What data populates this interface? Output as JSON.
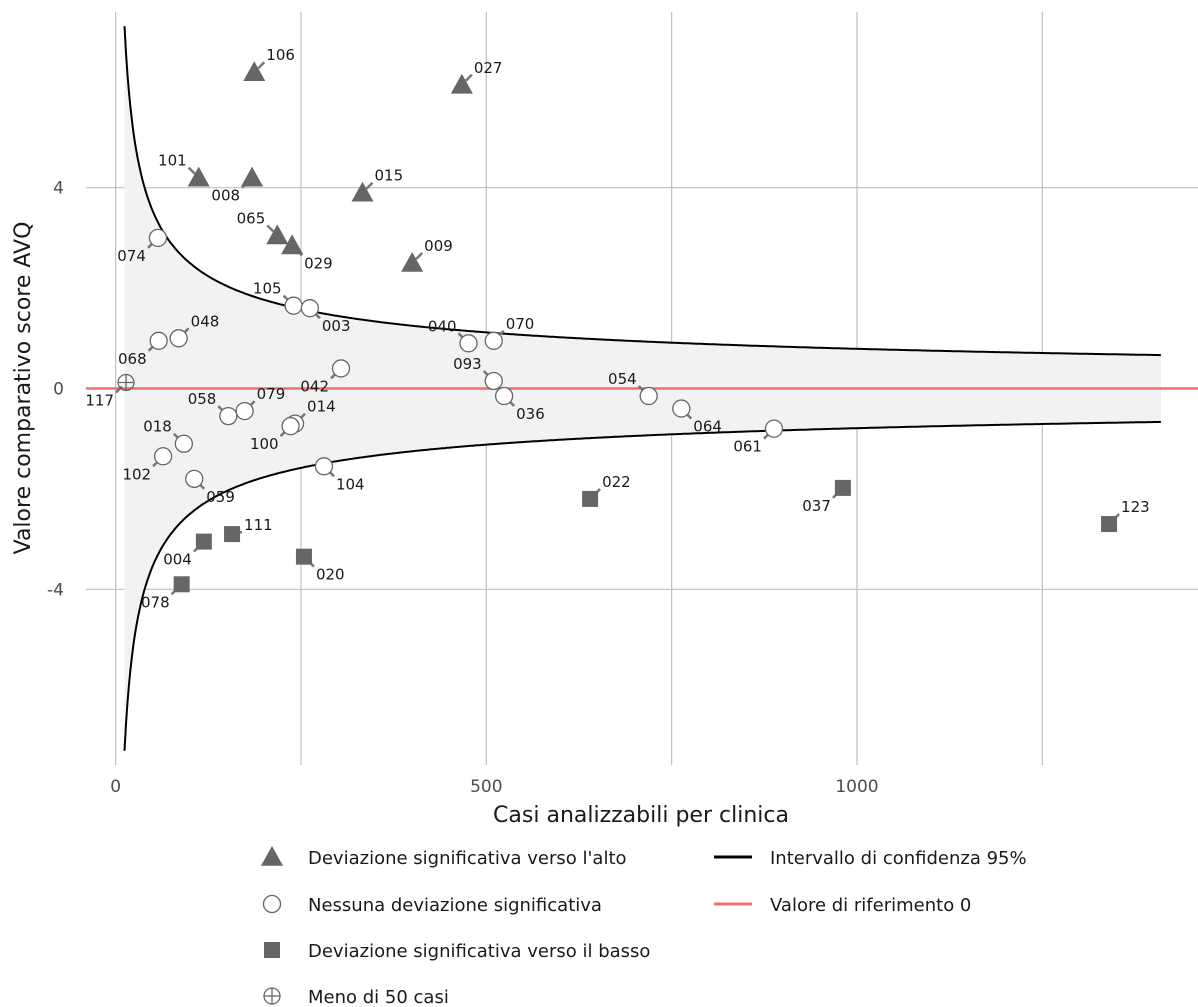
{
  "chart_data": {
    "type": "scatter",
    "title": "",
    "xlabel": "Casi analizzabili per clinica",
    "ylabel": "Valore comparativo score AVQ",
    "xlim": [
      -40,
      1460
    ],
    "ylim": [
      -7.5,
      7.5
    ],
    "xticks": [
      0,
      500,
      1000
    ],
    "yticks": [
      -4,
      0,
      4
    ],
    "grid": true,
    "colors": {
      "marker": "#666666",
      "ci_line": "#000000",
      "ci_fill": "#f2f2f2",
      "reference": "#ef6f6f",
      "grid": "#bfbfbf"
    },
    "confidence_band": {
      "label": "Intervallo di confidenza 95%",
      "coef": 25.0,
      "x_start": 12,
      "x_end": 1410
    },
    "reference_line": {
      "label": "Valore di riferimento 0",
      "y": 0
    },
    "categories": [
      {
        "key": "up",
        "label": "Deviazione significativa verso l'alto",
        "marker": "triangle"
      },
      {
        "key": "none",
        "label": "Nessuna deviazione significativa",
        "marker": "circle"
      },
      {
        "key": "down",
        "label": "Deviazione significativa verso il basso",
        "marker": "square"
      },
      {
        "key": "few",
        "label": "Meno di 50 casi",
        "marker": "circle-plus"
      }
    ],
    "points": [
      {
        "id": "106",
        "x": 187,
        "y": 6.3,
        "cat": "up",
        "ldx": 10,
        "ldy": -10,
        "anchor": "start"
      },
      {
        "id": "027",
        "x": 467,
        "y": 6.05,
        "cat": "up",
        "ldx": 10,
        "ldy": -10,
        "anchor": "start"
      },
      {
        "id": "101",
        "x": 112,
        "y": 4.2,
        "cat": "up",
        "ldx": -10,
        "ldy": -10,
        "anchor": "end"
      },
      {
        "id": "008",
        "x": 184,
        "y": 4.2,
        "cat": "up",
        "ldx": -10,
        "ldy": 10,
        "anchor": "end"
      },
      {
        "id": "015",
        "x": 333,
        "y": 3.9,
        "cat": "up",
        "ldx": 10,
        "ldy": -10,
        "anchor": "start"
      },
      {
        "id": "065",
        "x": 218,
        "y": 3.05,
        "cat": "up",
        "ldx": -10,
        "ldy": -10,
        "anchor": "end"
      },
      {
        "id": "029",
        "x": 238,
        "y": 2.85,
        "cat": "up",
        "ldx": 10,
        "ldy": 10,
        "anchor": "start"
      },
      {
        "id": "009",
        "x": 400,
        "y": 2.5,
        "cat": "up",
        "ldx": 10,
        "ldy": -10,
        "anchor": "start"
      },
      {
        "id": "074",
        "x": 57,
        "y": 3.0,
        "cat": "none",
        "ldx": -10,
        "ldy": 10,
        "anchor": "end"
      },
      {
        "id": "105",
        "x": 240,
        "y": 1.65,
        "cat": "none",
        "ldx": -10,
        "ldy": -10,
        "anchor": "end"
      },
      {
        "id": "003",
        "x": 262,
        "y": 1.6,
        "cat": "none",
        "ldx": 10,
        "ldy": 10,
        "anchor": "start"
      },
      {
        "id": "048",
        "x": 85,
        "y": 1.0,
        "cat": "none",
        "ldx": 10,
        "ldy": -10,
        "anchor": "start"
      },
      {
        "id": "068",
        "x": 58,
        "y": 0.95,
        "cat": "none",
        "ldx": -10,
        "ldy": 10,
        "anchor": "end"
      },
      {
        "id": "042",
        "x": 304,
        "y": 0.4,
        "cat": "none",
        "ldx": -10,
        "ldy": 10,
        "anchor": "end"
      },
      {
        "id": "040",
        "x": 476,
        "y": 0.9,
        "cat": "none",
        "ldx": -10,
        "ldy": -10,
        "anchor": "end"
      },
      {
        "id": "070",
        "x": 510,
        "y": 0.95,
        "cat": "none",
        "ldx": 10,
        "ldy": -10,
        "anchor": "start"
      },
      {
        "id": "093",
        "x": 510,
        "y": 0.15,
        "cat": "none",
        "ldx": -10,
        "ldy": -10,
        "anchor": "end"
      },
      {
        "id": "036",
        "x": 524,
        "y": -0.15,
        "cat": "none",
        "ldx": 10,
        "ldy": 10,
        "anchor": "start"
      },
      {
        "id": "054",
        "x": 719,
        "y": -0.15,
        "cat": "none",
        "ldx": -10,
        "ldy": -10,
        "anchor": "end"
      },
      {
        "id": "064",
        "x": 763,
        "y": -0.4,
        "cat": "none",
        "ldx": 10,
        "ldy": 10,
        "anchor": "start"
      },
      {
        "id": "061",
        "x": 888,
        "y": -0.8,
        "cat": "none",
        "ldx": -10,
        "ldy": 10,
        "anchor": "end"
      },
      {
        "id": "058",
        "x": 152,
        "y": -0.55,
        "cat": "none",
        "ldx": -10,
        "ldy": -10,
        "anchor": "end"
      },
      {
        "id": "079",
        "x": 174,
        "y": -0.45,
        "cat": "none",
        "ldx": 10,
        "ldy": -10,
        "anchor": "start"
      },
      {
        "id": "014",
        "x": 242,
        "y": -0.7,
        "cat": "none",
        "ldx": 10,
        "ldy": -10,
        "anchor": "start"
      },
      {
        "id": "100",
        "x": 236,
        "y": -0.75,
        "cat": "none",
        "ldx": -10,
        "ldy": 10,
        "anchor": "end"
      },
      {
        "id": "018",
        "x": 92,
        "y": -1.1,
        "cat": "none",
        "ldx": -10,
        "ldy": -10,
        "anchor": "end"
      },
      {
        "id": "102",
        "x": 64,
        "y": -1.35,
        "cat": "none",
        "ldx": -10,
        "ldy": 10,
        "anchor": "end"
      },
      {
        "id": "059",
        "x": 106,
        "y": -1.8,
        "cat": "none",
        "ldx": 10,
        "ldy": 10,
        "anchor": "start"
      },
      {
        "id": "104",
        "x": 281,
        "y": -1.55,
        "cat": "none",
        "ldx": 10,
        "ldy": 10,
        "anchor": "start"
      },
      {
        "id": "117",
        "x": 14,
        "y": 0.12,
        "cat": "few",
        "ldx": -10,
        "ldy": 10,
        "anchor": "end"
      },
      {
        "id": "022",
        "x": 640,
        "y": -2.2,
        "cat": "down",
        "ldx": 10,
        "ldy": -10,
        "anchor": "start"
      },
      {
        "id": "037",
        "x": 981,
        "y": -1.98,
        "cat": "down",
        "ldx": -10,
        "ldy": 10,
        "anchor": "end"
      },
      {
        "id": "123",
        "x": 1340,
        "y": -2.7,
        "cat": "down",
        "ldx": 10,
        "ldy": -10,
        "anchor": "start"
      },
      {
        "id": "111",
        "x": 157,
        "y": -2.9,
        "cat": "down",
        "ldx": 10,
        "ldy": -2,
        "anchor": "start"
      },
      {
        "id": "004",
        "x": 119,
        "y": -3.05,
        "cat": "down",
        "ldx": -10,
        "ldy": 10,
        "anchor": "end"
      },
      {
        "id": "020",
        "x": 254,
        "y": -3.35,
        "cat": "down",
        "ldx": 10,
        "ldy": 10,
        "anchor": "start"
      },
      {
        "id": "078",
        "x": 89,
        "y": -3.9,
        "cat": "down",
        "ldx": -10,
        "ldy": 10,
        "anchor": "end"
      }
    ]
  }
}
